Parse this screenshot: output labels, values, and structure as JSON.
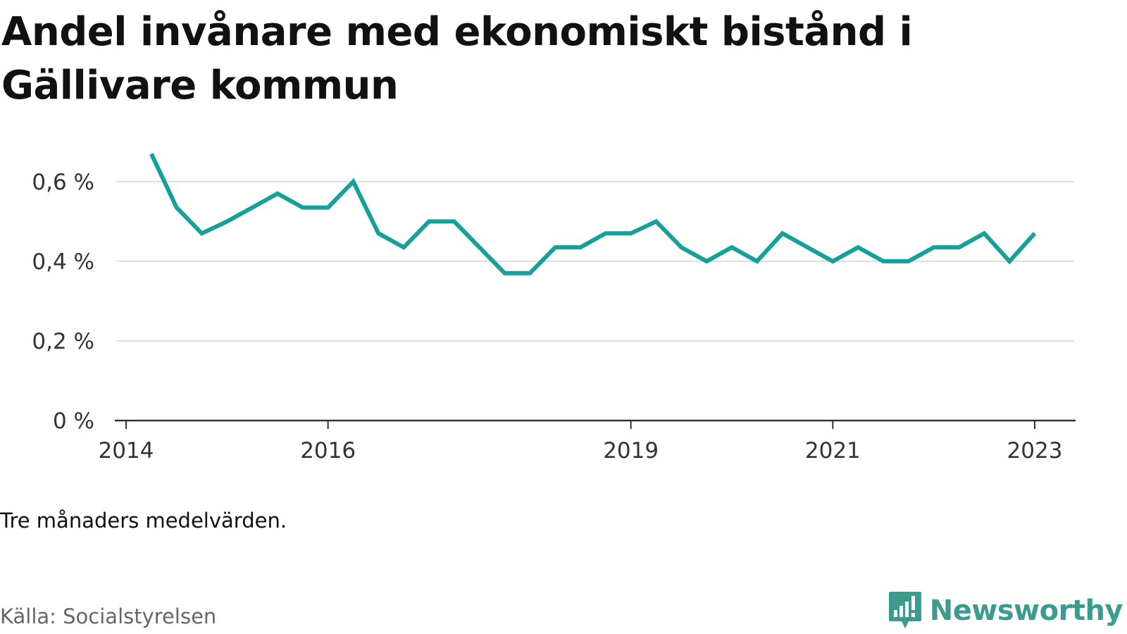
{
  "title": "Andel invånare med ekonomiskt bistånd i Gällivare kommun",
  "note": "Tre månaders medelvärden.",
  "source": "Källa: Socialstyrelsen",
  "brand": {
    "name": "Newsworthy",
    "color": "#3d9a8e",
    "icon": "newsworthy-logo-icon"
  },
  "chart_data": {
    "type": "line",
    "title": "Andel invånare med ekonomiskt bistånd i Gällivare kommun",
    "xlabel": "",
    "ylabel": "",
    "x_ticks": [
      "2014",
      "2016",
      "2019",
      "2021",
      "2023"
    ],
    "y_ticks": [
      "0 %",
      "0,2 %",
      "0,4 %",
      "0,6 %"
    ],
    "ylim": [
      0,
      0.72
    ],
    "grid": true,
    "line_color": "#15a19a",
    "series": [
      {
        "values": [
          [
            "2014-04",
            0.67
          ],
          [
            "2014-07",
            0.535
          ],
          [
            "2014-10",
            0.47
          ],
          [
            "2015-01",
            0.5
          ],
          [
            "2015-04",
            0.535
          ],
          [
            "2015-07",
            0.57
          ],
          [
            "2015-10",
            0.535
          ],
          [
            "2016-01",
            0.535
          ],
          [
            "2016-04",
            0.6
          ],
          [
            "2016-07",
            0.47
          ],
          [
            "2016-10",
            0.435
          ],
          [
            "2017-01",
            0.5
          ],
          [
            "2017-04",
            0.5
          ],
          [
            "2017-07",
            0.435
          ],
          [
            "2017-10",
            0.37
          ],
          [
            "2018-01",
            0.37
          ],
          [
            "2018-04",
            0.435
          ],
          [
            "2018-07",
            0.435
          ],
          [
            "2018-10",
            0.47
          ],
          [
            "2019-01",
            0.47
          ],
          [
            "2019-04",
            0.5
          ],
          [
            "2019-07",
            0.435
          ],
          [
            "2019-10",
            0.4
          ],
          [
            "2020-01",
            0.435
          ],
          [
            "2020-04",
            0.4
          ],
          [
            "2020-07",
            0.47
          ],
          [
            "2020-10",
            0.435
          ],
          [
            "2021-01",
            0.4
          ],
          [
            "2021-04",
            0.435
          ],
          [
            "2021-07",
            0.4
          ],
          [
            "2021-10",
            0.4
          ],
          [
            "2022-01",
            0.435
          ],
          [
            "2022-04",
            0.435
          ],
          [
            "2022-07",
            0.47
          ],
          [
            "2022-10",
            0.4
          ],
          [
            "2023-01",
            0.47
          ]
        ]
      }
    ]
  }
}
